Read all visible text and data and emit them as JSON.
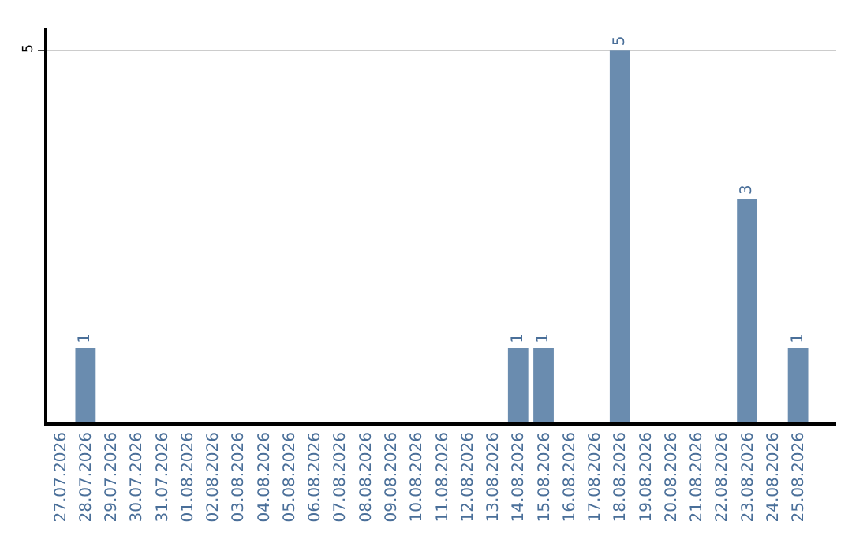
{
  "chart_data": {
    "type": "bar",
    "categories": [
      "27.07.2026",
      "28.07.2026",
      "29.07.2026",
      "30.07.2026",
      "31.07.2026",
      "01.08.2026",
      "02.08.2026",
      "03.08.2026",
      "04.08.2026",
      "05.08.2026",
      "06.08.2026",
      "07.08.2026",
      "08.08.2026",
      "09.08.2026",
      "10.08.2026",
      "11.08.2026",
      "12.08.2026",
      "13.08.2026",
      "14.08.2026",
      "15.08.2026",
      "16.08.2026",
      "17.08.2026",
      "18.08.2026",
      "19.08.2026",
      "20.08.2026",
      "21.08.2026",
      "22.08.2026",
      "23.08.2026",
      "24.08.2026",
      "25.08.2026"
    ],
    "values": [
      0,
      1,
      0,
      0,
      0,
      0,
      0,
      0,
      0,
      0,
      0,
      0,
      0,
      0,
      0,
      0,
      0,
      0,
      1,
      1,
      0,
      0,
      5,
      0,
      0,
      0,
      0,
      3,
      0,
      1
    ],
    "value_labels": [
      null,
      "1",
      null,
      null,
      null,
      null,
      null,
      null,
      null,
      null,
      null,
      null,
      null,
      null,
      null,
      null,
      null,
      null,
      "1",
      "1",
      null,
      null,
      "5",
      null,
      null,
      null,
      null,
      "3",
      null,
      "1"
    ],
    "color": "#6a8caf",
    "ylim": [
      0,
      5.3
    ],
    "yticks": [
      5
    ],
    "grid": "y",
    "legend": false
  }
}
